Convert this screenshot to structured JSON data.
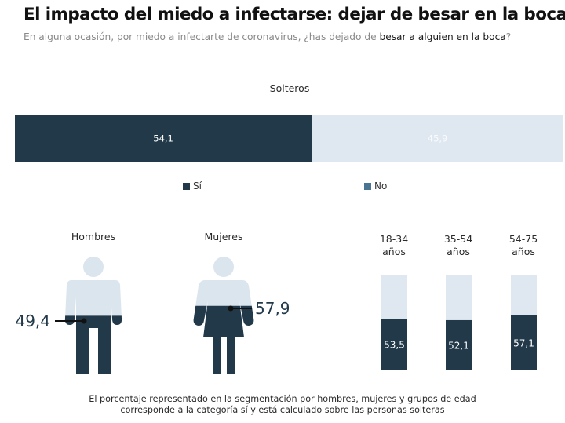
{
  "header": {
    "title": "El impacto del miedo a infectarse: dejar de besar en la boca",
    "subtitle_plain": "En alguna ocasión, por miedo a infectarte de coronavirus, ¿has dejado de ",
    "subtitle_emphasis": "besar a alguien en la boca",
    "subtitle_end": "?"
  },
  "colors": {
    "si": "#22394a",
    "no_bar": "#dfe8f0",
    "no_legend": "#4b7493",
    "figure_light": "#dbe5ee"
  },
  "chart_data": [
    {
      "type": "bar",
      "orientation": "horizontal-stacked",
      "title": "Solteros",
      "categories": [
        "Solteros"
      ],
      "series": [
        {
          "name": "Sí",
          "values": [
            54.1
          ],
          "label": "54,1"
        },
        {
          "name": "No",
          "values": [
            45.9
          ],
          "label": "45,9"
        }
      ],
      "legend": {
        "position": "bottom",
        "entries": [
          "Sí",
          "No"
        ]
      }
    },
    {
      "type": "bar",
      "orientation": "pictogram-fill",
      "categories": [
        "Hombres",
        "Mujeres"
      ],
      "series": [
        {
          "name": "Sí",
          "values": [
            49.4,
            57.9
          ],
          "labels": [
            "49,4",
            "57,9"
          ]
        }
      ]
    },
    {
      "type": "bar",
      "orientation": "vertical-stacked",
      "categories": [
        "18-34 años",
        "35-54 años",
        "54-75 años"
      ],
      "category_lines": [
        [
          "18-34",
          "años"
        ],
        [
          "35-54",
          "años"
        ],
        [
          "54-75",
          "años"
        ]
      ],
      "series": [
        {
          "name": "Sí",
          "values": [
            53.5,
            52.1,
            57.1
          ],
          "labels": [
            "53,5",
            "52,1",
            "57,1"
          ]
        }
      ],
      "ylim": [
        0,
        100
      ]
    }
  ],
  "note": {
    "line1": "El porcentaje representado en la segmentación por hombres, mujeres y grupos de edad",
    "line2": "corresponde a la categoría sí y está calculado sobre las personas solteras"
  }
}
